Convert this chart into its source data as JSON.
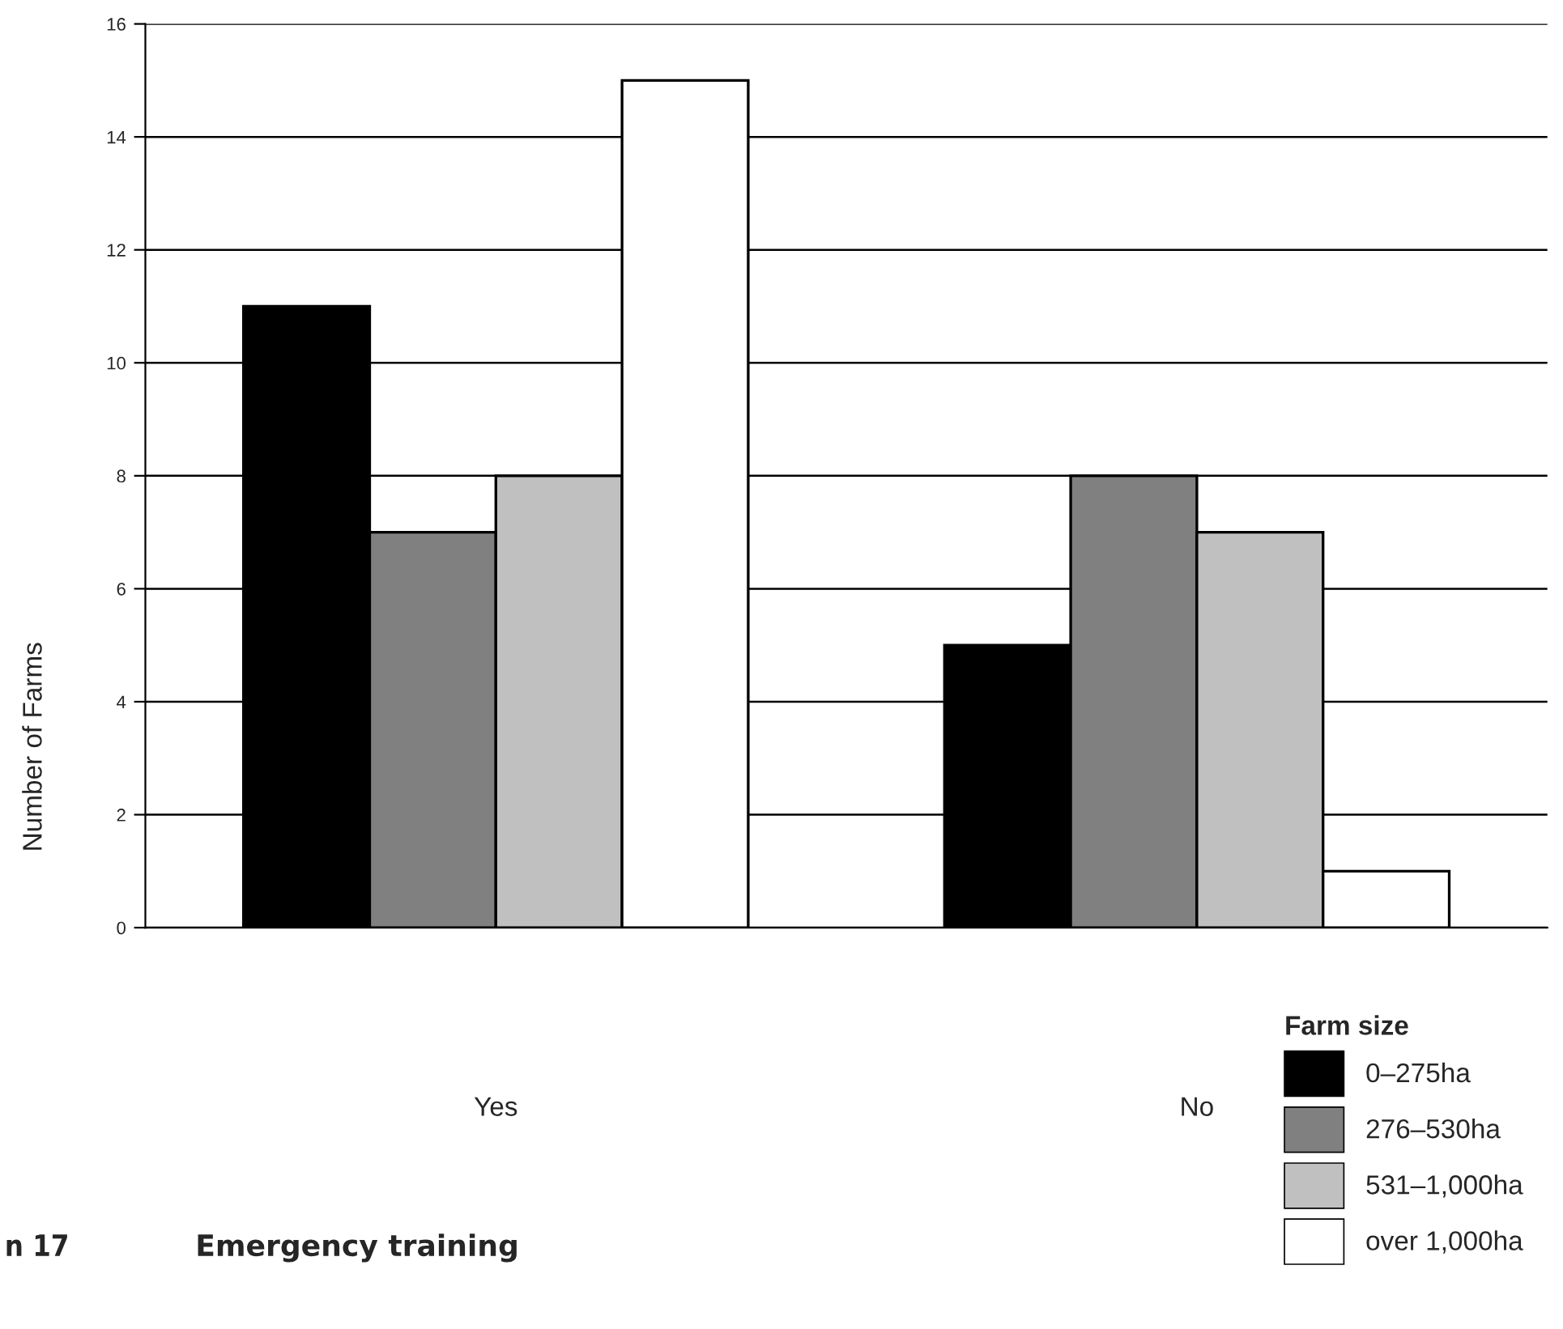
{
  "chart_data": {
    "type": "bar",
    "title": "Emergency training",
    "ylabel": "Number of Farms",
    "legend_title": "Farm size",
    "annotations": [
      "n 17"
    ],
    "categories": [
      "Yes",
      "No"
    ],
    "series": [
      {
        "name": "0–275ha",
        "color": "#000000",
        "values": [
          11,
          5
        ]
      },
      {
        "name": "276–530ha",
        "color": "#808080",
        "values": [
          7,
          8
        ]
      },
      {
        "name": "531–1,000ha",
        "color": "#c0c0c0",
        "values": [
          8,
          7
        ]
      },
      {
        "name": "over 1,000ha",
        "color": "#ffffff",
        "values": [
          15,
          1
        ]
      }
    ],
    "ylim": [
      0,
      16
    ],
    "yticks": [
      0,
      2,
      4,
      6,
      8,
      10,
      12,
      14,
      16
    ],
    "grid": "y",
    "legend": "bottom right"
  }
}
